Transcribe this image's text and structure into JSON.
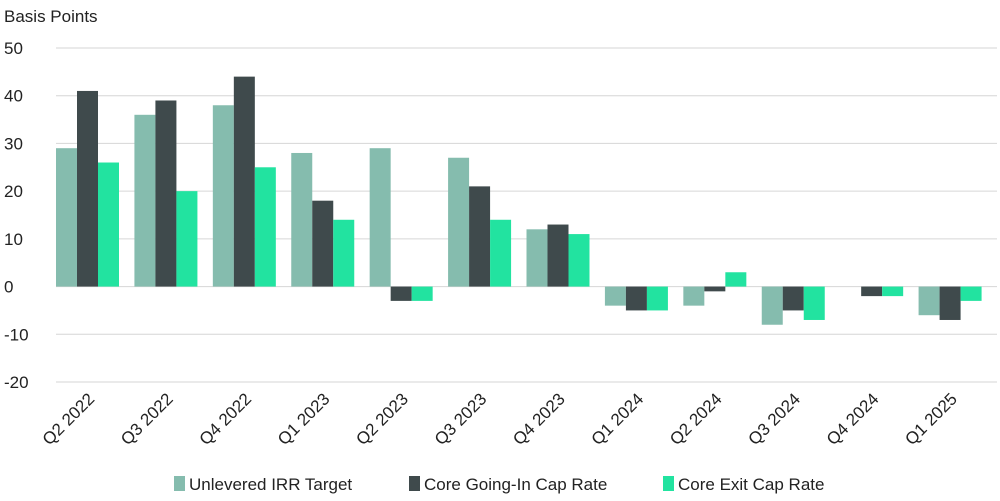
{
  "chart_data": {
    "type": "bar",
    "ylabel": "Basis Points",
    "xlabel": "",
    "title": "",
    "ylim": [
      -20,
      50
    ],
    "yticks": [
      50,
      40,
      30,
      20,
      10,
      0,
      -10,
      -20
    ],
    "grid": true,
    "legend_position": "bottom",
    "categories": [
      "Q2 2022",
      "Q3 2022",
      "Q4 2022",
      "Q1 2023",
      "Q2 2023",
      "Q3 2023",
      "Q4 2023",
      "Q1 2024",
      "Q2 2024",
      "Q3 2024",
      "Q4 2024",
      "Q1 2025"
    ],
    "series": [
      {
        "name": "Unlevered IRR Target",
        "color": "#85bcae",
        "values": [
          29,
          36,
          38,
          28,
          29,
          27,
          12,
          -4,
          -4,
          -8,
          0,
          -6
        ]
      },
      {
        "name": "Core Going-In Cap Rate",
        "color": "#3f4a4c",
        "values": [
          41,
          39,
          44,
          18,
          -3,
          21,
          13,
          -5,
          -1,
          -5,
          -2,
          -7
        ]
      },
      {
        "name": "Core Exit Cap Rate",
        "color": "#22e3a0",
        "values": [
          26,
          20,
          25,
          14,
          -3,
          14,
          11,
          -5,
          3,
          -7,
          -2,
          -3
        ]
      }
    ]
  }
}
